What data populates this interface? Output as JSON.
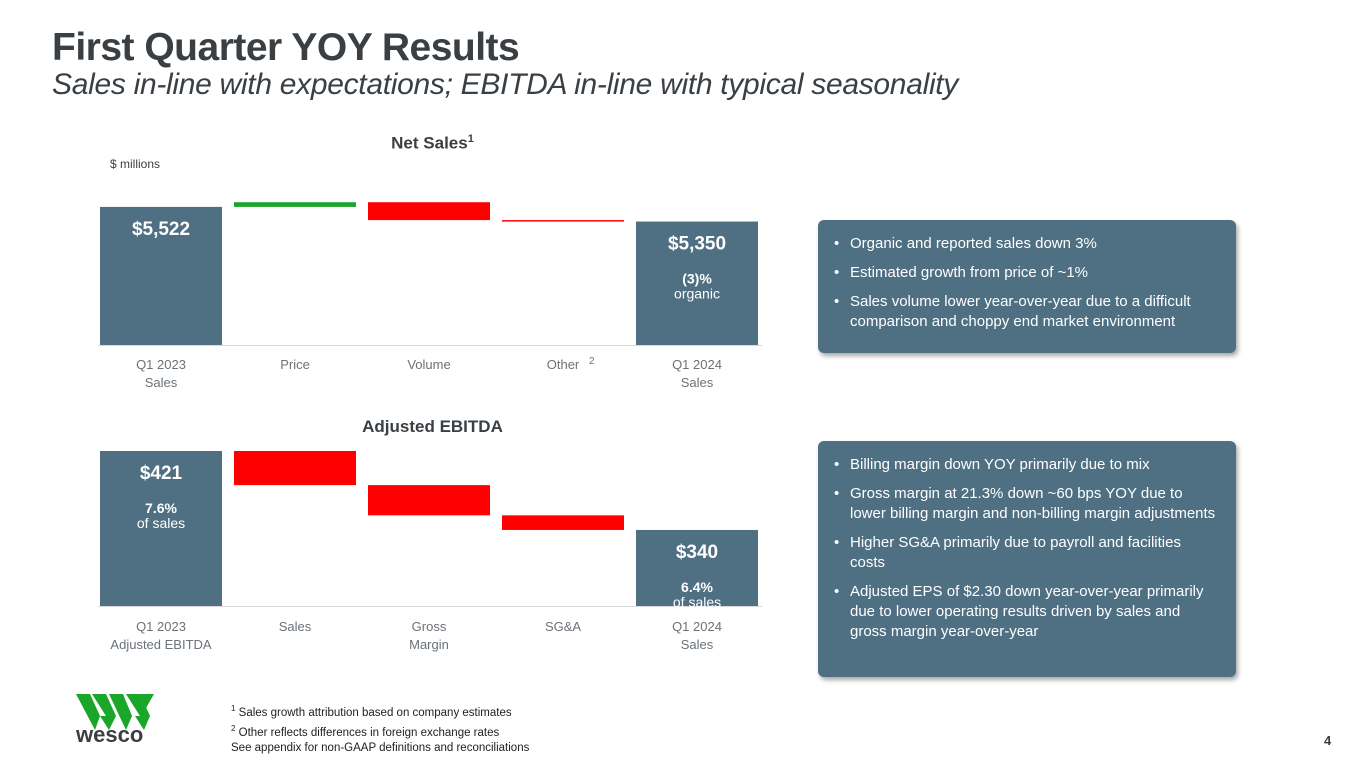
{
  "header": {
    "title": "First Quarter YOY Results",
    "subtitle": "Sales in-line with expectations; EBITDA in-line with typical seasonality"
  },
  "chart_data": [
    {
      "type": "waterfall",
      "title": "Net Sales",
      "title_footnote": "1",
      "units_label": "$ millions",
      "categories": [
        {
          "label": [
            "Q1 2023",
            "Sales"
          ],
          "footnote": ""
        },
        {
          "label": [
            "Price"
          ],
          "footnote": ""
        },
        {
          "label": [
            "Volume"
          ],
          "footnote": ""
        },
        {
          "label": [
            "Other"
          ],
          "footnote": "2"
        },
        {
          "label": [
            "Q1 2024",
            "Sales"
          ],
          "footnote": ""
        }
      ],
      "bars": [
        {
          "kind": "total",
          "value": 5522,
          "value_label": "$5,522"
        },
        {
          "kind": "increase",
          "delta": 55
        },
        {
          "kind": "decrease",
          "delta": -210
        },
        {
          "kind": "decrease",
          "delta": -17
        },
        {
          "kind": "total",
          "value": 5350,
          "value_label": "$5,350",
          "sub_value": "(3)%",
          "sub_label": "organic"
        }
      ],
      "ylim": [
        3900,
        5650
      ]
    },
    {
      "type": "waterfall",
      "title": "Adjusted EBITDA",
      "categories": [
        {
          "label": [
            "Q1 2023",
            "Adjusted EBITDA"
          ],
          "footnote": ""
        },
        {
          "label": [
            "Sales"
          ],
          "footnote": ""
        },
        {
          "label": [
            "Gross",
            "Margin"
          ],
          "footnote": ""
        },
        {
          "label": [
            "SG&A"
          ],
          "footnote": ""
        },
        {
          "label": [
            "Q1 2024",
            "Sales"
          ],
          "footnote": ""
        }
      ],
      "bars": [
        {
          "kind": "total",
          "value": 421,
          "value_label": "$421",
          "sub_value": "7.6%",
          "sub_label": "of sales"
        },
        {
          "kind": "decrease",
          "delta": -35
        },
        {
          "kind": "decrease",
          "delta": -31
        },
        {
          "kind": "decrease",
          "delta": -15
        },
        {
          "kind": "total",
          "value": 340,
          "value_label": "$340",
          "sub_value": "6.4%",
          "sub_label": "of sales"
        }
      ],
      "ylim": [
        262,
        421
      ]
    }
  ],
  "callouts": {
    "sales": [
      "Organic and reported sales down 3%",
      "Estimated growth from price of ~1%",
      "Sales volume lower year-over-year due to a difficult comparison and choppy end market environment"
    ],
    "ebitda": [
      "Billing margin down YOY primarily due to mix",
      "Gross margin at 21.3% down ~60 bps YOY due to lower billing margin and non-billing margin adjustments",
      "Higher SG&A primarily due to payroll and facilities costs",
      "Adjusted EPS of $2.30 down year-over-year primarily due to lower operating results  driven by sales and gross margin year-over-year"
    ]
  },
  "footnotes": [
    {
      "mark": "1",
      "text": " Sales growth attribution based on company estimates"
    },
    {
      "mark": "2",
      "text": " Other reflects differences in foreign exchange rates"
    },
    {
      "mark": "",
      "text": "See appendix for non-GAAP definitions and reconciliations"
    }
  ],
  "logo": {
    "wordmark": "wesco"
  },
  "page_number": "4",
  "colors": {
    "total_bar": "#4f6f82",
    "increase": "#1aa629",
    "decrease": "#ff0000",
    "baseline": "#d9d9d9",
    "text_dark": "#3a3f44",
    "logo_green": "#1aa629"
  }
}
